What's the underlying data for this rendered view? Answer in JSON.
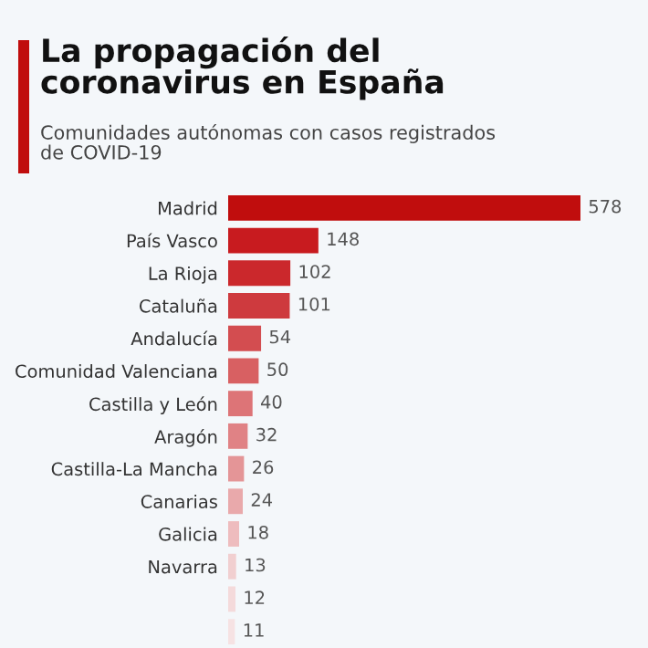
{
  "chart_data": {
    "type": "bar",
    "orientation": "horizontal",
    "title": "La propagación del\ncoronavirus en España",
    "subtitle": "Comunidades autónomas con casos registrados\nde COVID-19",
    "categories": [
      "Madrid",
      "País Vasco",
      "La Rioja",
      "Cataluña",
      "Andalucía",
      "Comunidad Valenciana",
      "Castilla y León",
      "Aragón",
      "Castilla-La Mancha",
      "Canarias",
      "Galicia",
      "Navarra",
      null,
      null
    ],
    "values": [
      578,
      148,
      102,
      101,
      54,
      50,
      40,
      32,
      26,
      24,
      18,
      13,
      12,
      11
    ],
    "colors": [
      "#c00d0d",
      "#c81b1f",
      "#cb282c",
      "#ce3a3e",
      "#d34d50",
      "#d86062",
      "#dd7477",
      "#e08285",
      "#e49597",
      "#e9a9ab",
      "#eebcbe",
      "#f1cfd0",
      "#f4dadb",
      "#f6e2e3"
    ],
    "data_labels": true,
    "grid": false,
    "legend": false
  }
}
